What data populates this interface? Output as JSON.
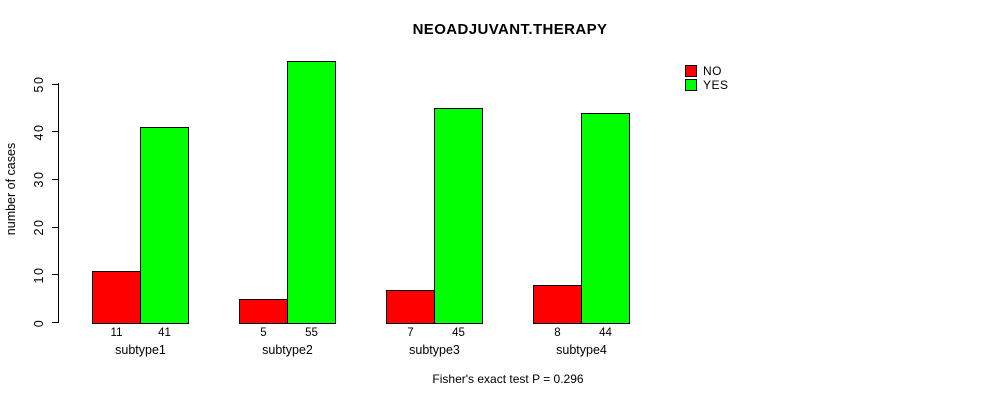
{
  "chart_data": {
    "type": "bar",
    "title": "NEOADJUVANT.THERAPY",
    "categories": [
      "subtype1",
      "subtype2",
      "subtype3",
      "subtype4"
    ],
    "series": [
      {
        "name": "NO",
        "color": "#ff0000",
        "values": [
          11,
          5,
          7,
          8
        ]
      },
      {
        "name": "YES",
        "color": "#00ff00",
        "values": [
          41,
          55,
          45,
          44
        ]
      }
    ],
    "xlabel": "",
    "ylabel": "number of cases",
    "yticks": [
      0,
      10,
      20,
      30,
      40,
      50
    ],
    "ylim": [
      0,
      55
    ],
    "grid": false,
    "legend_position": "top-right",
    "bar_value_labels": {
      "NO": [
        "11",
        "5",
        "7",
        "8"
      ],
      "YES": [
        "41",
        "55",
        "45",
        "44"
      ]
    },
    "annotation": "Fisher's exact test P = 0.296"
  },
  "colors": {
    "background": "#ffffff",
    "axis": "#000000",
    "no": "#ff0000",
    "yes": "#00ff00"
  }
}
